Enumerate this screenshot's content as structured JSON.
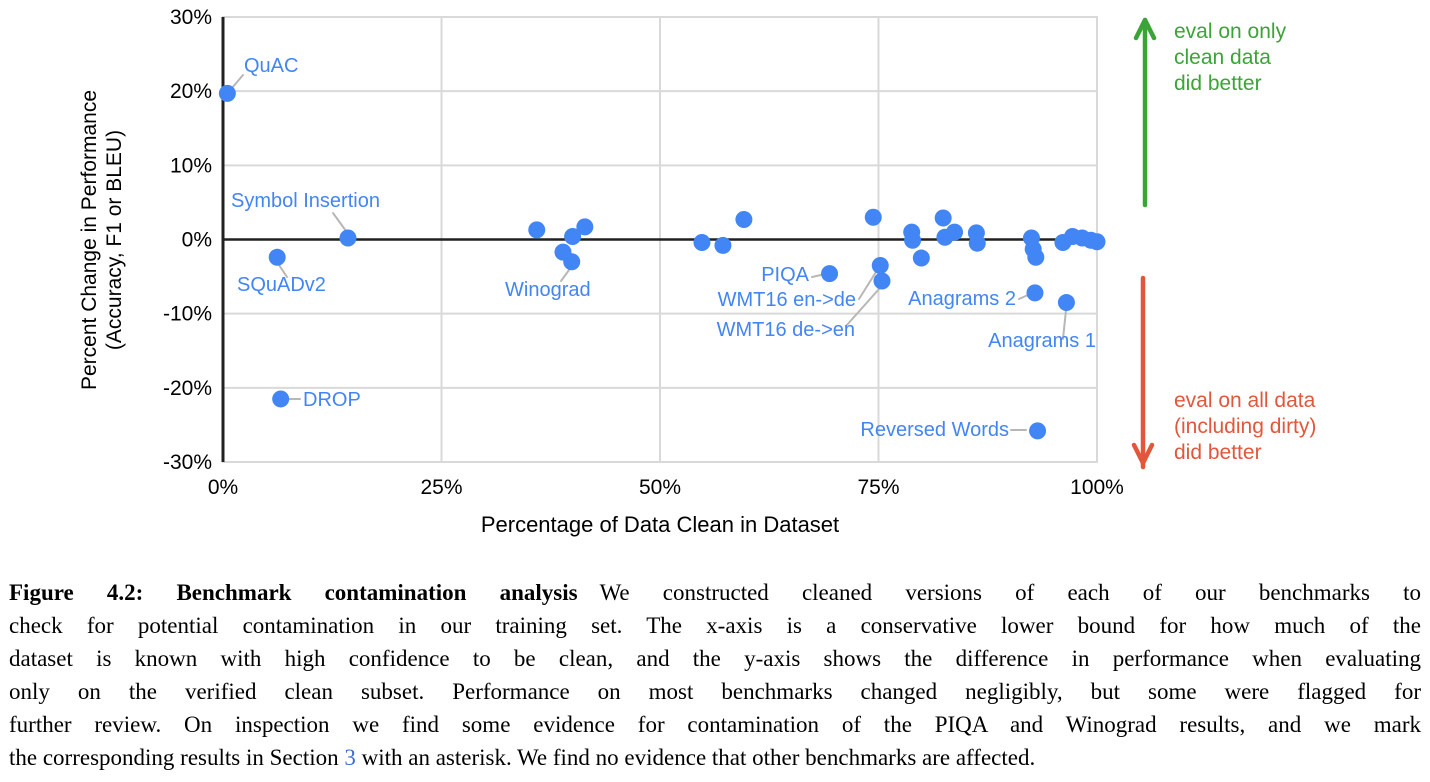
{
  "chart_data": {
    "type": "scatter",
    "title": "",
    "xlabel": "Percentage of Data Clean in Dataset",
    "ylabel_line1": "Percent Change in Performance",
    "ylabel_line2": "(Accuracy, F1 or BLEU)",
    "xlim": [
      0,
      100
    ],
    "ylim": [
      -30,
      30
    ],
    "grid": true,
    "x_ticks": [
      "0%",
      "25%",
      "50%",
      "75%",
      "100%"
    ],
    "x_tick_values": [
      0,
      25,
      50,
      75,
      100
    ],
    "y_ticks": [
      "30%",
      "20%",
      "10%",
      "0%",
      "-10%",
      "-20%",
      "-30%"
    ],
    "y_tick_values": [
      30,
      20,
      10,
      0,
      -10,
      -20,
      -30
    ],
    "points": [
      {
        "label": "QuAC",
        "x": 0.5,
        "y": 19.7
      },
      {
        "label": "SQuADv2",
        "x": 6.2,
        "y": -2.4
      },
      {
        "label": "DROP",
        "x": 6.6,
        "y": -21.5
      },
      {
        "label": "Symbol Insertion",
        "x": 14.3,
        "y": 0.2
      },
      {
        "x": 35.9,
        "y": 1.3
      },
      {
        "x": 38.9,
        "y": -1.7
      },
      {
        "label": "Winograd",
        "x": 39.9,
        "y": -3.0
      },
      {
        "x": 40.0,
        "y": 0.4
      },
      {
        "x": 41.4,
        "y": 1.7
      },
      {
        "x": 54.8,
        "y": -0.4
      },
      {
        "x": 57.2,
        "y": -0.8
      },
      {
        "x": 59.6,
        "y": 2.7
      },
      {
        "label": "PIQA",
        "x": 69.4,
        "y": -4.6
      },
      {
        "x": 74.4,
        "y": 3.0
      },
      {
        "label": "WMT16 en->de",
        "x": 75.2,
        "y": -3.5
      },
      {
        "label": "WMT16 de->en",
        "x": 75.4,
        "y": -5.6
      },
      {
        "x": 78.8,
        "y": 1.0
      },
      {
        "x": 78.9,
        "y": -0.1
      },
      {
        "x": 79.9,
        "y": -2.5
      },
      {
        "x": 82.4,
        "y": 2.9
      },
      {
        "x": 82.6,
        "y": 0.3
      },
      {
        "x": 83.7,
        "y": 1.0
      },
      {
        "x": 86.2,
        "y": 0.9
      },
      {
        "x": 86.3,
        "y": -0.5
      },
      {
        "x": 92.5,
        "y": 0.2
      },
      {
        "x": 92.7,
        "y": -1.3
      },
      {
        "x": 93.0,
        "y": -2.4
      },
      {
        "label": "Anagrams 2",
        "x": 92.9,
        "y": -7.2
      },
      {
        "label": "Reversed Words",
        "x": 93.2,
        "y": -25.8
      },
      {
        "x": 96.1,
        "y": -0.4
      },
      {
        "label": "Anagrams 1",
        "x": 96.5,
        "y": -8.5
      },
      {
        "x": 97.2,
        "y": 0.4
      },
      {
        "x": 98.3,
        "y": 0.2
      },
      {
        "x": 99.3,
        "y": -0.1
      },
      {
        "x": 100,
        "y": -0.3
      }
    ],
    "annotations_right": {
      "top": {
        "lines": [
          "eval on only",
          "clean data",
          "did better"
        ],
        "color": "#3aa535"
      },
      "bottom": {
        "lines": [
          "eval on all data",
          "(including dirty)",
          "did better"
        ],
        "color": "#e2573c"
      }
    },
    "colors": {
      "point": "#4285f4",
      "point_label": "#4285f4",
      "grid": "#d9d9d9",
      "axis": "#212121",
      "leader": "#b7b7b7",
      "tick_text": "#000000"
    },
    "legend_position": "none"
  },
  "caption": {
    "line1_bold": "Figure 4.2: Benchmark contamination analysis",
    "line1_rest": "We constructed cleaned versions of each of our benchmarks to",
    "line2": "check for potential contamination in our training set. The x-axis is a conservative lower bound for how much of the",
    "line3": "dataset is known with high confidence to be clean, and the y-axis shows the difference in performance when evaluating",
    "line4": "only on the verified clean subset. Performance on most benchmarks changed negligibly, but some were flagged for",
    "line5": "further review. On inspection we find some evidence for contamination of the PIQA and Winograd results, and we mark",
    "line6_pre": "the corresponding results in Section ",
    "line6_link": "3",
    "line6_post": " with an asterisk. We find no evidence that other benchmarks are affected."
  }
}
